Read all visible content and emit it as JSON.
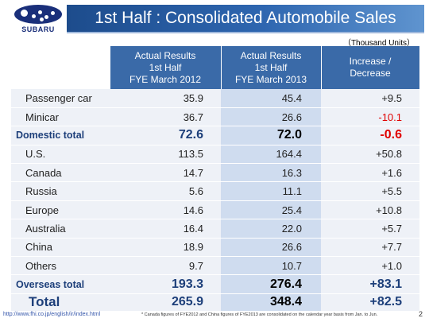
{
  "logo": {
    "text": "SUBARU"
  },
  "title": "1st Half : Consolidated Automobile Sales",
  "units": "（Thousand Units）",
  "table": {
    "headers": [
      {
        "lines": [
          "Actual Results",
          "1st Half",
          "FYE March 2012"
        ]
      },
      {
        "lines": [
          "Actual Results",
          "1st Half",
          "FYE March 2013"
        ]
      },
      {
        "lines": [
          "Increase /",
          "Decrease"
        ]
      }
    ],
    "rows": [
      {
        "name": "Passenger car",
        "fy2012": "35.9",
        "fy2013": "45.4",
        "change": "+9.5",
        "negative": false,
        "type": "item"
      },
      {
        "name": "Minicar",
        "fy2012": "36.7",
        "fy2013": "26.6",
        "change": "-10.1",
        "negative": true,
        "type": "item"
      },
      {
        "name": "Domestic total",
        "fy2012": "72.6",
        "fy2013": "72.0",
        "change": "-0.6",
        "negative": true,
        "type": "total"
      },
      {
        "name": "U.S.",
        "fy2012": "113.5",
        "fy2013": "164.4",
        "change": "+50.8",
        "negative": false,
        "type": "item"
      },
      {
        "name": "Canada",
        "fy2012": "14.7",
        "fy2013": "16.3",
        "change": "+1.6",
        "negative": false,
        "type": "item"
      },
      {
        "name": "Russia",
        "fy2012": "5.6",
        "fy2013": "11.1",
        "change": "+5.5",
        "negative": false,
        "type": "item"
      },
      {
        "name": "Europe",
        "fy2012": "14.6",
        "fy2013": "25.4",
        "change": "+10.8",
        "negative": false,
        "type": "item"
      },
      {
        "name": "Australia",
        "fy2012": "16.4",
        "fy2013": "22.0",
        "change": "+5.7",
        "negative": false,
        "type": "item"
      },
      {
        "name": "China",
        "fy2012": "18.9",
        "fy2013": "26.6",
        "change": "+7.7",
        "negative": false,
        "type": "item"
      },
      {
        "name": "Others",
        "fy2012": "9.7",
        "fy2013": "10.7",
        "change": "+1.0",
        "negative": false,
        "type": "item"
      },
      {
        "name": "Overseas total",
        "fy2012": "193.3",
        "fy2013": "276.4",
        "change": "+83.1",
        "negative": false,
        "type": "total"
      },
      {
        "name": "Total",
        "fy2012": "265.9",
        "fy2013": "348.4",
        "change": "+82.5",
        "negative": false,
        "type": "grand"
      }
    ]
  },
  "footer": {
    "url": "http://www.fhi.co.jp/english/ir/index.html",
    "note": "* Canada figures of FYE2012 and China figures of FYE2013 are consolidated on the calendar year basis from Jan. to Jun.",
    "page": "2"
  },
  "colors": {
    "header_blue": "#3a6aa8",
    "title_bar": "#2e66b0",
    "highlight_column": "#cfdcef",
    "negative": "#e00000",
    "total_text": "#1d3f7a"
  }
}
